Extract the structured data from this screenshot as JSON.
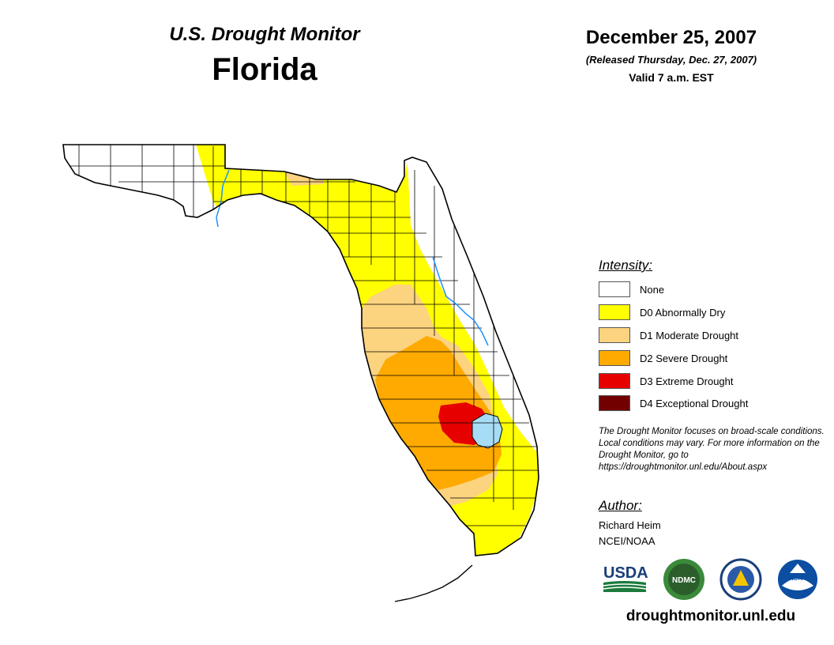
{
  "header": {
    "product": "U.S. Drought Monitor",
    "state": "Florida",
    "date": "December 25, 2007",
    "released": "(Released Thursday, Dec. 27, 2007)",
    "valid": "Valid 7 a.m. EST"
  },
  "legend": {
    "title": "Intensity:",
    "items": [
      {
        "label": "None",
        "color": "#ffffff"
      },
      {
        "label": "D0 Abnormally Dry",
        "color": "#ffff00"
      },
      {
        "label": "D1 Moderate Drought",
        "color": "#fcd37f"
      },
      {
        "label": "D2 Severe Drought",
        "color": "#ffaa00"
      },
      {
        "label": "D3 Extreme Drought",
        "color": "#e60000"
      },
      {
        "label": "D4 Exceptional Drought",
        "color": "#730000"
      }
    ]
  },
  "note": "The Drought Monitor focuses on broad-scale conditions. Local conditions may vary. For more information on the Drought Monitor, go to https://droughtmonitor.unl.edu/About.aspx",
  "author": {
    "title": "Author:",
    "name": "Richard Heim",
    "org": "NCEI/NOAA"
  },
  "logos": {
    "usda": "USDA",
    "ndmc": "NDMC",
    "noaa": "NOAA"
  },
  "site_url": "droughtmonitor.unl.edu",
  "map_colors": {
    "lake": "#a6dcf5",
    "water_line": "#1e90ff",
    "outline": "#000000"
  }
}
